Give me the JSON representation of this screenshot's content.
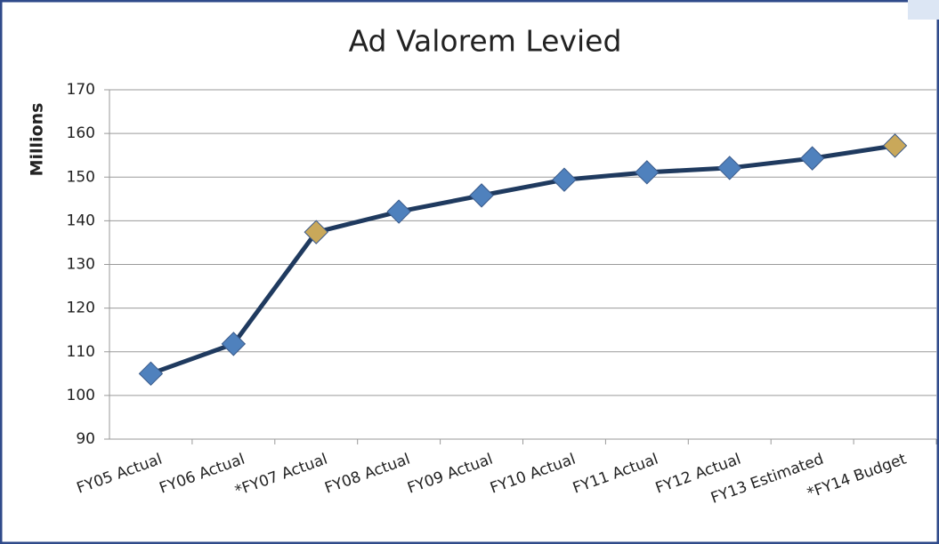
{
  "chart_data": {
    "type": "line",
    "title": "Ad Valorem Levied",
    "ylabel": "Millions",
    "categories": [
      "FY05 Actual",
      "FY06 Actual",
      "*FY07 Actual",
      "FY08 Actual",
      "FY09 Actual",
      "FY10 Actual",
      "FY11 Actual",
      "FY12 Actual",
      "FY13 Estimated",
      "*FY14 Budget"
    ],
    "series": [
      {
        "name": "Ad Valorem Levied",
        "color": "#1f3a5f",
        "values": [
          105,
          111.8,
          137.4,
          142.1,
          145.8,
          149.4,
          151.1,
          152.1,
          154.3,
          157.2
        ],
        "marker_colors": [
          "#4f81bd",
          "#4f81bd",
          "#c9a85a",
          "#4f81bd",
          "#4f81bd",
          "#4f81bd",
          "#4f81bd",
          "#4f81bd",
          "#4f81bd",
          "#c9a85a"
        ]
      }
    ],
    "ylim": [
      90,
      170
    ],
    "yticks": [
      90,
      100,
      110,
      120,
      130,
      140,
      150,
      160,
      170
    ],
    "grid": true
  }
}
